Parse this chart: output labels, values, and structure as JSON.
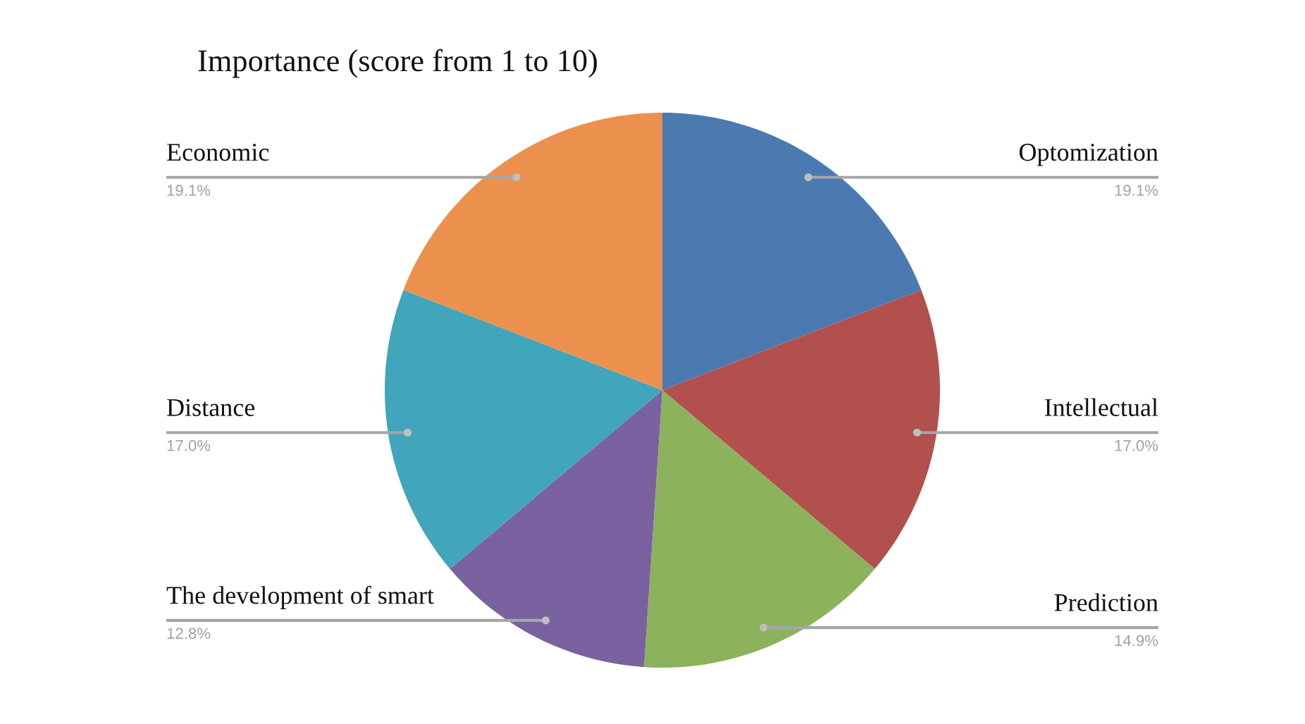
{
  "chart_data": {
    "type": "pie",
    "title": "Importance (score from 1 to 10)",
    "categories": [
      "Optomization",
      "Intellectual",
      "Prediction",
      "The development of smart",
      "Distance",
      "Economic"
    ],
    "values": [
      19.1,
      17.0,
      14.9,
      12.8,
      17.0,
      19.1
    ],
    "value_labels": [
      "19.1%",
      "17.0%",
      "14.9%",
      "12.8%",
      "17.0%",
      "19.1%"
    ],
    "colors": [
      "#4a7ab0",
      "#b2504e",
      "#8db25c",
      "#7a62a0",
      "#41a5bb",
      "#ec914d"
    ],
    "legend": false
  }
}
